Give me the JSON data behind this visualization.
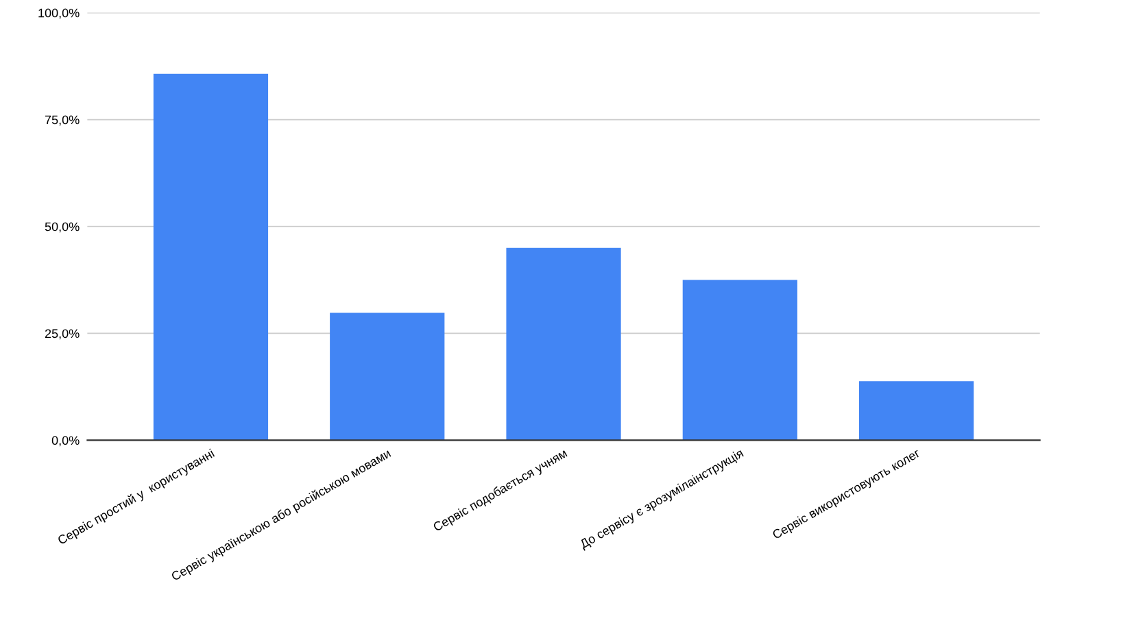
{
  "chart_data": {
    "type": "bar",
    "categories": [
      "Сервіс простий у  користуванні",
      "Сервіс українською або російською мовами",
      "Сервіс подобається учням",
      "До сервісу є зрозумілаінструкція",
      "Сервіс використовують колег"
    ],
    "values": [
      85.7,
      29.8,
      45.0,
      37.5,
      13.8
    ],
    "color": "#4285f4",
    "ylim": [
      0,
      100
    ],
    "yticks": [
      {
        "value": 0,
        "label": "0,0%"
      },
      {
        "value": 25,
        "label": "25,0%"
      },
      {
        "value": 50,
        "label": "50,0%"
      },
      {
        "value": 75,
        "label": "75,0%"
      },
      {
        "value": 100,
        "label": "100,0%"
      }
    ],
    "grid": "y",
    "legend": false
  }
}
